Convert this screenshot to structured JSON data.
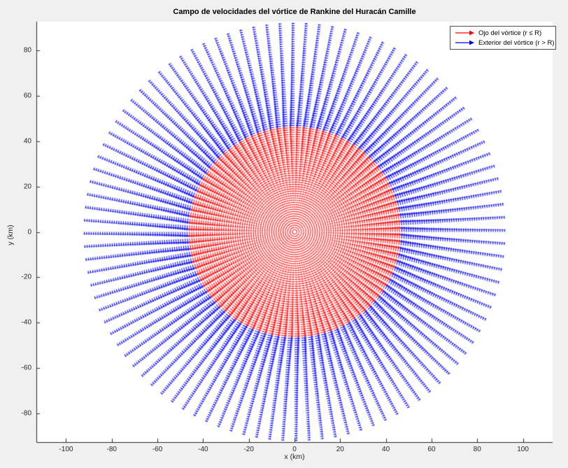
{
  "figure": {
    "title": "Campo de velocidades del vórtice de Rankine del Huracán Camille",
    "background_color": "#f0f0f0",
    "plot_background": "#ffffff",
    "axis_color": "#262626",
    "tick_label_color": "#262626"
  },
  "legend": {
    "items": [
      {
        "label": "Ojo del vórtice (r ≤ R)",
        "color": "#ff0000",
        "icon": "arrow-right-icon"
      },
      {
        "label": "Exterior del vórtice (r > R)",
        "color": "#0000ff",
        "icon": "arrow-right-icon"
      }
    ]
  },
  "chart_data": {
    "type": "quiver",
    "title": "Campo de velocidades del vórtice de Rankine del Huracán Camille",
    "xlabel": "x (km)",
    "ylabel": "y (km)",
    "xlim": [
      -113,
      113
    ],
    "ylim": [
      -92.8,
      92.8
    ],
    "x_ticks": [
      -100,
      -80,
      -60,
      -40,
      -20,
      0,
      20,
      40,
      60,
      80,
      100
    ],
    "y_ticks": [
      -80,
      -60,
      -40,
      -20,
      0,
      20,
      40,
      60,
      80
    ],
    "grid": false,
    "legend_position": "top-right",
    "model": "Rankine vortex: v(r) = vmax*(r/R) for r <= R ; v(r) = vmax*(R/r) for r > R",
    "R_km": 46,
    "r_min_km": 1,
    "r_max_km": 92,
    "dr_km": 1,
    "n_theta": 100,
    "rotation": "counterclockwise",
    "center_km": [
      0,
      0
    ],
    "arrow_scale_km_at_vmax": 2.3,
    "series": [
      {
        "name": "Ojo del vórtice (r ≤ R)",
        "region": "r <= R",
        "color": "#ff0000",
        "speed_profile": "v = vmax * r / R"
      },
      {
        "name": "Exterior del vórtice (r > R)",
        "region": "r > R",
        "color": "#0000ff",
        "speed_profile": "v = vmax * R / r"
      }
    ]
  }
}
